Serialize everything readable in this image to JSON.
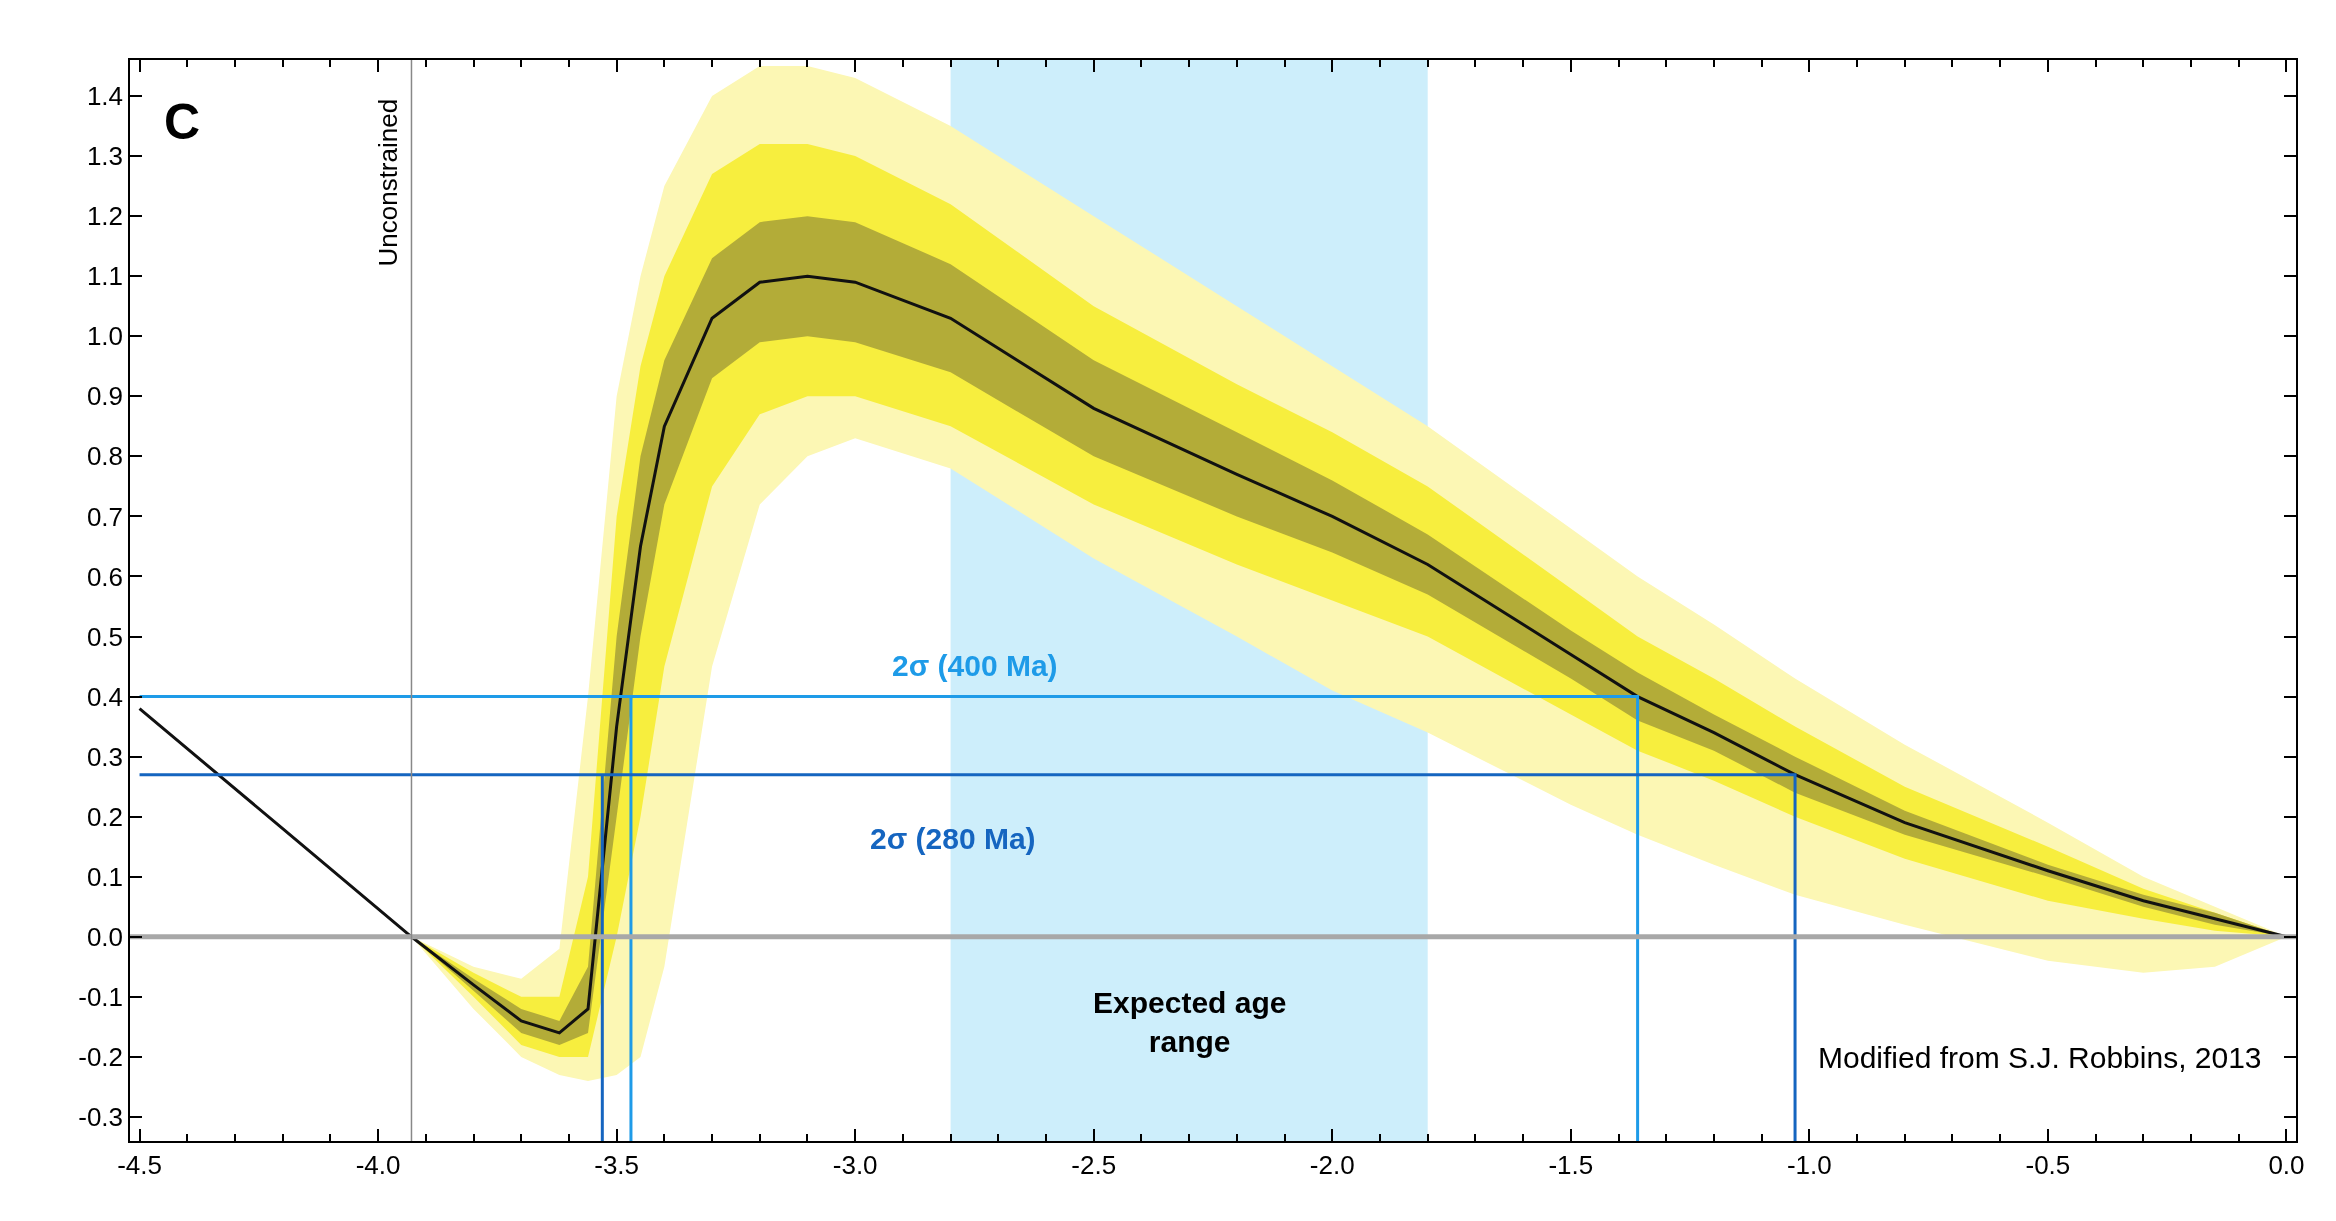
{
  "chart_data": {
    "type": "line",
    "xlim": [
      -4.52,
      0.02
    ],
    "ylim": [
      -0.34,
      1.46
    ],
    "xticks": [
      {
        "value": -4.5,
        "label": "-4.5"
      },
      {
        "value": -4.0,
        "label": "-4.0"
      },
      {
        "value": -3.5,
        "label": "-3.5"
      },
      {
        "value": -3.0,
        "label": "-3.0"
      },
      {
        "value": -2.5,
        "label": "-2.5"
      },
      {
        "value": -2.0,
        "label": "-2.0"
      },
      {
        "value": -1.5,
        "label": "-1.5"
      },
      {
        "value": -1.0,
        "label": "-1.0"
      },
      {
        "value": -0.5,
        "label": "-0.5"
      },
      {
        "value": 0,
        "label": "0.0"
      }
    ],
    "yticks": [
      {
        "value": -0.3,
        "label": "-0.3"
      },
      {
        "value": -0.2,
        "label": "-0.2"
      },
      {
        "value": -0.1,
        "label": "-0.1"
      },
      {
        "value": 0,
        "label": "0.0"
      },
      {
        "value": 0.1,
        "label": "0.1"
      },
      {
        "value": 0.2,
        "label": "0.2"
      },
      {
        "value": 0.3,
        "label": "0.3"
      },
      {
        "value": 0.4,
        "label": "0.4"
      },
      {
        "value": 0.5,
        "label": "0.5"
      },
      {
        "value": 0.6,
        "label": "0.6"
      },
      {
        "value": 0.7,
        "label": "0.7"
      },
      {
        "value": 0.8,
        "label": "0.8"
      },
      {
        "value": 0.9,
        "label": "0.9"
      },
      {
        "value": 1.0,
        "label": "1.0"
      },
      {
        "value": 1.1,
        "label": "1.1"
      },
      {
        "value": 1.2,
        "label": "1.2"
      },
      {
        "value": 1.3,
        "label": "1.3"
      },
      {
        "value": 1.4,
        "label": "1.4"
      }
    ],
    "grid": false,
    "series": [
      {
        "type": "line",
        "color": "#fcf7b4",
        "x": [
          -3.93,
          -3.8,
          -3.7,
          -3.62,
          -3.56,
          -3.5,
          -3.45,
          -3.4,
          -3.3,
          -3.2,
          -3.1,
          -3.0,
          -2.8,
          -2.5,
          -2.2,
          -2.0,
          -1.8,
          -1.5,
          -1.36,
          -1.2,
          -1.03,
          -0.8,
          -0.5,
          -0.3,
          -0.15,
          0.0
        ],
        "values": [
          null,
          null,
          null,
          null,
          null,
          null,
          null,
          null,
          null,
          null,
          null,
          null,
          null,
          null,
          null,
          null,
          null,
          null,
          null,
          null,
          null,
          null,
          null,
          null,
          null,
          null
        ],
        "lower": [
          0,
          -0.12,
          -0.2,
          -0.23,
          -0.24,
          -0.23,
          -0.2,
          -0.05,
          0.45,
          0.72,
          0.8,
          0.83,
          0.78,
          0.63,
          0.5,
          0.41,
          0.34,
          0.22,
          0.17,
          0.12,
          0.07,
          0.02,
          -0.04,
          -0.06,
          -0.05,
          0
        ],
        "upper": [
          0,
          -0.05,
          -0.07,
          -0.02,
          0.4,
          0.9,
          1.1,
          1.25,
          1.4,
          1.45,
          1.45,
          1.43,
          1.35,
          1.2,
          1.05,
          0.95,
          0.85,
          0.68,
          0.6,
          0.52,
          0.43,
          0.32,
          0.19,
          0.1,
          0.05,
          0
        ]
      },
      {
        "type": "line",
        "color": "#f7ee3e",
        "x": [
          -3.93,
          -3.8,
          -3.7,
          -3.62,
          -3.56,
          -3.5,
          -3.45,
          -3.4,
          -3.3,
          -3.2,
          -3.1,
          -3.0,
          -2.8,
          -2.5,
          -2.2,
          -2.0,
          -1.8,
          -1.5,
          -1.36,
          -1.2,
          -1.03,
          -0.8,
          -0.5,
          -0.3,
          -0.15,
          0.0
        ],
        "values": [
          null,
          null,
          null,
          null,
          null,
          null,
          null,
          null,
          null,
          null,
          null,
          null,
          null,
          null,
          null,
          null,
          null,
          null,
          null,
          null,
          null,
          null,
          null,
          null,
          null,
          null
        ],
        "lower": [
          0,
          -0.1,
          -0.18,
          -0.2,
          -0.2,
          0.0,
          0.2,
          0.45,
          0.75,
          0.87,
          0.9,
          0.9,
          0.85,
          0.72,
          0.62,
          0.56,
          0.5,
          0.37,
          0.31,
          0.26,
          0.2,
          0.13,
          0.06,
          0.03,
          0.01,
          0
        ],
        "upper": [
          0,
          -0.06,
          -0.1,
          -0.1,
          0.1,
          0.7,
          0.95,
          1.1,
          1.27,
          1.32,
          1.32,
          1.3,
          1.22,
          1.05,
          0.92,
          0.84,
          0.75,
          0.58,
          0.5,
          0.43,
          0.35,
          0.25,
          0.15,
          0.08,
          0.04,
          0
        ]
      },
      {
        "type": "line",
        "color": "#b3ac38",
        "x": [
          -3.93,
          -3.8,
          -3.7,
          -3.62,
          -3.56,
          -3.5,
          -3.45,
          -3.4,
          -3.3,
          -3.2,
          -3.1,
          -3.0,
          -2.8,
          -2.5,
          -2.2,
          -2.0,
          -1.8,
          -1.5,
          -1.36,
          -1.2,
          -1.03,
          -0.8,
          -0.5,
          -0.3,
          -0.15,
          0.0
        ],
        "values": [
          null,
          null,
          null,
          null,
          null,
          null,
          null,
          null,
          null,
          null,
          null,
          null,
          null,
          null,
          null,
          null,
          null,
          null,
          null,
          null,
          null,
          null,
          null,
          null,
          null,
          null
        ],
        "lower": [
          0,
          -0.09,
          -0.16,
          -0.18,
          -0.16,
          0.2,
          0.5,
          0.72,
          0.93,
          0.99,
          1.0,
          0.99,
          0.94,
          0.8,
          0.7,
          0.64,
          0.57,
          0.43,
          0.36,
          0.31,
          0.24,
          0.17,
          0.1,
          0.05,
          0.02,
          0
        ],
        "upper": [
          0,
          -0.07,
          -0.12,
          -0.14,
          -0.05,
          0.5,
          0.8,
          0.96,
          1.13,
          1.19,
          1.2,
          1.19,
          1.12,
          0.96,
          0.84,
          0.76,
          0.67,
          0.51,
          0.44,
          0.37,
          0.3,
          0.21,
          0.12,
          0.07,
          0.04,
          0
        ]
      },
      {
        "color": "#111111",
        "x": [
          -4.5,
          -4.2,
          -3.93,
          -3.8,
          -3.7,
          -3.62,
          -3.56,
          -3.5,
          -3.45,
          -3.4,
          -3.3,
          -3.2,
          -3.1,
          -3.0,
          -2.8,
          -2.5,
          -2.2,
          -2.0,
          -1.8,
          -1.5,
          -1.36,
          -1.2,
          -1.03,
          -0.8,
          -0.5,
          -0.3,
          -0.15,
          0.0
        ],
        "values": [
          0.38,
          0.18,
          0.0,
          -0.08,
          -0.14,
          -0.16,
          -0.12,
          0.35,
          0.65,
          0.85,
          1.03,
          1.09,
          1.1,
          1.09,
          1.03,
          0.88,
          0.77,
          0.7,
          0.62,
          0.47,
          0.4,
          0.34,
          0.27,
          0.19,
          0.11,
          0.06,
          0.03,
          0.0
        ]
      },
      {
        "color": "#1e9be8",
        "x": [
          -4.5,
          -1.36,
          -1.36
        ],
        "values": [
          0.4,
          0.4,
          -0.34
        ]
      },
      {
        "color": "#1e9be8",
        "x": [
          -3.47,
          -3.47
        ],
        "values": [
          0.4,
          -0.34
        ]
      },
      {
        "color": "#1565c0",
        "x": [
          -4.5,
          -1.03,
          -1.03
        ],
        "values": [
          0.27,
          0.27,
          -0.34
        ]
      },
      {
        "color": "#1565c0",
        "x": [
          -3.53,
          -3.53
        ],
        "values": [
          0.27,
          -0.34
        ]
      }
    ],
    "ref_lines": [
      {
        "axis": "x",
        "value": -3.93,
        "label": "Unconstrained",
        "color": "#888888"
      },
      {
        "axis": "y",
        "value": 0,
        "color": "#a8a8a8"
      }
    ],
    "bands": [
      {
        "axis": "x",
        "from": -2.8,
        "to": -1.8,
        "label": "Expected age\nrange",
        "color": "#cdeefb"
      }
    ],
    "annotations": [
      "C",
      "2σ (400 Ma)",
      "2σ (280 Ma)",
      "Modified from S.J. Robbins, 2013"
    ]
  }
}
